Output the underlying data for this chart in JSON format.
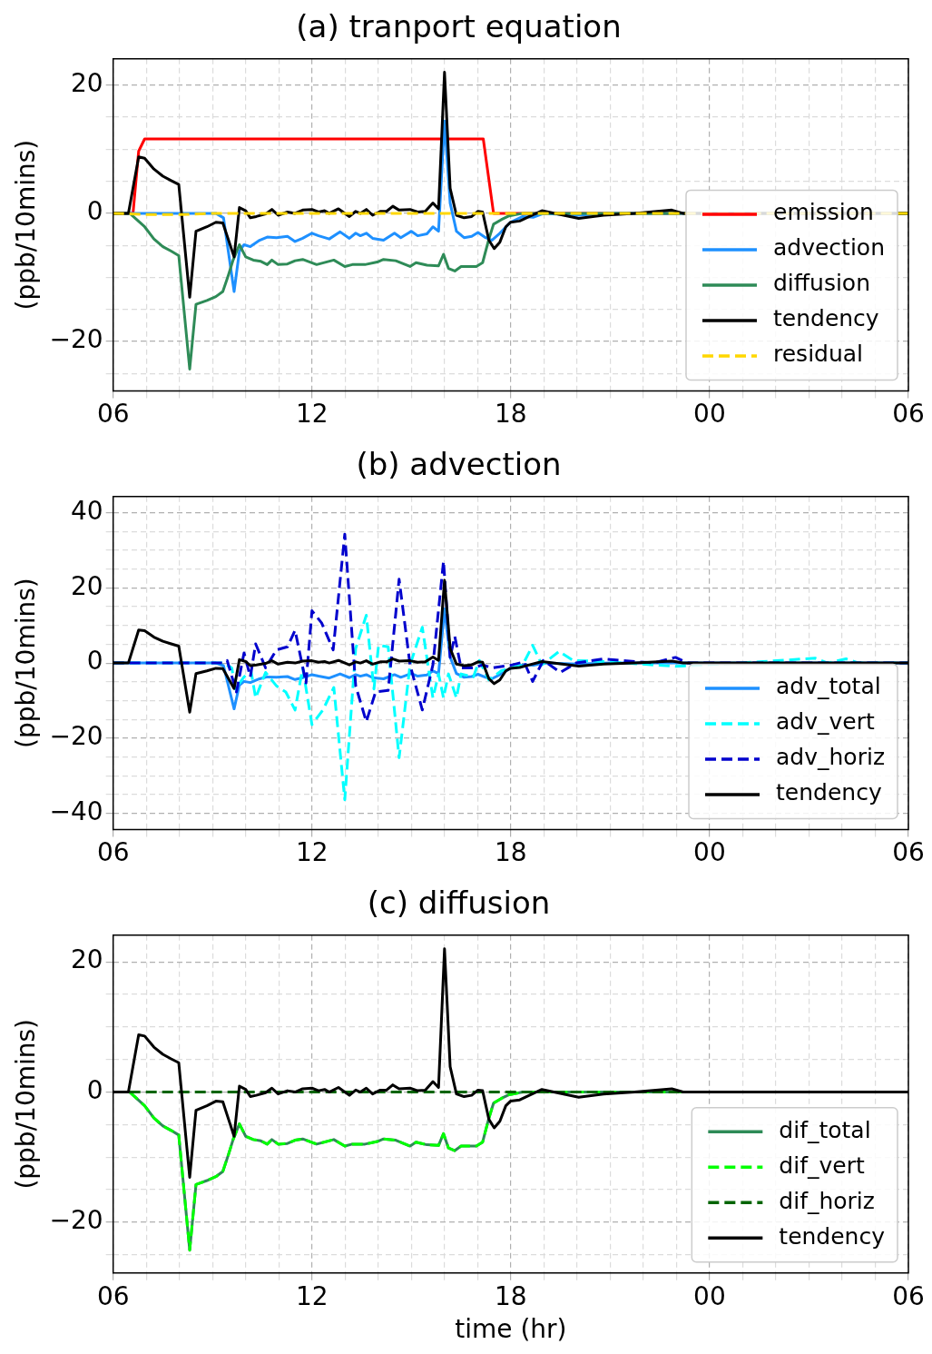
{
  "chart_data": [
    {
      "type": "line",
      "title": "(a) tranport equation",
      "ylabel": "(ppb/10mins)",
      "grid": true,
      "legend": "lower right",
      "xlim": [
        6,
        30
      ],
      "xticks": [
        {
          "value": 6,
          "label": "06"
        },
        {
          "value": 7,
          "label": null
        },
        {
          "value": 8,
          "label": null
        },
        {
          "value": 9,
          "label": null
        },
        {
          "value": 10,
          "label": null
        },
        {
          "value": 11,
          "label": null
        },
        {
          "value": 12,
          "label": "12"
        },
        {
          "value": 13,
          "label": null
        },
        {
          "value": 14,
          "label": null
        },
        {
          "value": 15,
          "label": null
        },
        {
          "value": 16,
          "label": null
        },
        {
          "value": 17,
          "label": null
        },
        {
          "value": 18,
          "label": "18"
        },
        {
          "value": 19,
          "label": null
        },
        {
          "value": 20,
          "label": null
        },
        {
          "value": 21,
          "label": null
        },
        {
          "value": 22,
          "label": null
        },
        {
          "value": 23,
          "label": null
        },
        {
          "value": 24,
          "label": "00"
        },
        {
          "value": 25,
          "label": null
        },
        {
          "value": 26,
          "label": null
        },
        {
          "value": 27,
          "label": null
        },
        {
          "value": 28,
          "label": null
        },
        {
          "value": 29,
          "label": null
        },
        {
          "value": 30,
          "label": "06"
        }
      ],
      "ylim": [
        -27.7,
        24.1
      ],
      "yticks": [
        {
          "value": -25,
          "label": null
        },
        {
          "value": -20,
          "label": "−20"
        },
        {
          "value": -15,
          "label": null
        },
        {
          "value": -10,
          "label": null
        },
        {
          "value": -5,
          "label": null
        },
        0,
        {
          "value": 5,
          "label": null
        },
        {
          "value": 10,
          "label": null
        },
        {
          "value": 15,
          "label": null
        },
        20
      ],
      "series": [
        {
          "name": "emission",
          "color": "#ff0000",
          "x": [
            6,
            6.6,
            6.77,
            6.95,
            17.17,
            17.48,
            30
          ],
          "values": [
            0,
            0,
            9.7,
            11.6,
            11.6,
            0,
            0
          ]
        },
        {
          "name": "advection",
          "color": "#1e90ff",
          "x": [
            6,
            9.1,
            9.33,
            9.65,
            9.81,
            9.95,
            10.14,
            10.42,
            10.65,
            10.93,
            11.26,
            11.49,
            11.72,
            12.0,
            12.2,
            12.52,
            12.85,
            13.13,
            13.32,
            13.46,
            13.64,
            13.83,
            14.16,
            14.49,
            14.68,
            15.0,
            15.19,
            15.47,
            15.65,
            15.82,
            16.0,
            16.17,
            16.36,
            16.59,
            16.82,
            17.01,
            17.24,
            17.43,
            17.67,
            17.99,
            18.36,
            18.69,
            19.0,
            20.0,
            21.0,
            30
          ],
          "values": [
            0,
            0,
            -0.7,
            -12.2,
            -5.9,
            -4.9,
            -5.2,
            -4.2,
            -3.7,
            -3.8,
            -3.6,
            -4.4,
            -3.9,
            -3.1,
            -3.5,
            -4.0,
            -2.9,
            -3.9,
            -3.1,
            -3.5,
            -3.1,
            -3.9,
            -4.2,
            -3.1,
            -3.8,
            -2.8,
            -3.5,
            -3.2,
            -2.1,
            -2.8,
            14.4,
            1.6,
            -2.8,
            -3.8,
            -3.6,
            -3.0,
            -3.8,
            -4.2,
            -3.1,
            -1.4,
            -0.5,
            -0.6,
            0,
            -0.3,
            0,
            0
          ]
        },
        {
          "name": "diffusion",
          "color": "#2e8b57",
          "x": [
            6,
            6.5,
            6.95,
            7.23,
            7.5,
            7.75,
            7.98,
            8.31,
            8.5,
            8.83,
            9.1,
            9.31,
            9.48,
            9.62,
            9.81,
            10.0,
            10.23,
            10.46,
            10.65,
            10.79,
            10.98,
            11.26,
            11.49,
            11.72,
            12.14,
            12.66,
            12.99,
            13.22,
            13.6,
            13.97,
            14.16,
            14.53,
            14.96,
            15.14,
            15.47,
            15.82,
            15.97,
            16.12,
            16.31,
            16.5,
            16.96,
            17.15,
            17.34,
            17.48,
            17.71,
            17.95,
            18.36,
            30
          ],
          "values": [
            0,
            0,
            -2.1,
            -4.0,
            -5.2,
            -5.9,
            -6.6,
            -24.3,
            -14.2,
            -13.6,
            -13.0,
            -12.2,
            -9.6,
            -7.3,
            -4.9,
            -6.8,
            -7.3,
            -7.5,
            -8.0,
            -7.3,
            -8.0,
            -7.9,
            -7.4,
            -7.2,
            -8.0,
            -7.3,
            -8.3,
            -8.0,
            -8.0,
            -7.6,
            -7.2,
            -7.4,
            -8.3,
            -7.7,
            -8.1,
            -8.2,
            -6.4,
            -8.6,
            -9.0,
            -8.3,
            -8.3,
            -7.7,
            -4.0,
            -1.7,
            -1.0,
            -0.4,
            0,
            0
          ]
        },
        {
          "name": "tendency",
          "color": "#000000",
          "x": [
            6,
            6.46,
            6.77,
            6.95,
            7.23,
            7.5,
            7.75,
            7.98,
            8.31,
            8.5,
            8.83,
            9.1,
            9.31,
            9.65,
            9.81,
            10.0,
            10.14,
            10.32,
            10.6,
            10.79,
            10.98,
            11.26,
            11.49,
            11.72,
            12.0,
            12.2,
            12.38,
            12.52,
            12.8,
            13.13,
            13.32,
            13.46,
            13.64,
            13.83,
            14.06,
            14.25,
            14.44,
            14.63,
            14.96,
            15.19,
            15.42,
            15.65,
            15.82,
            16.0,
            16.17,
            16.36,
            16.59,
            16.82,
            17.01,
            17.15,
            17.34,
            17.5,
            17.67,
            17.85,
            17.99,
            18.27,
            18.56,
            18.94,
            20.05,
            20.8,
            21.74,
            22.86,
            23.2,
            30
          ],
          "values": [
            0,
            0,
            8.8,
            8.6,
            6.9,
            5.8,
            5.1,
            4.5,
            -13.1,
            -2.8,
            -2.1,
            -1.4,
            -1.5,
            -6.8,
            0.9,
            0.4,
            -0.7,
            -0.5,
            -0.1,
            0.6,
            -0.3,
            0.2,
            0,
            0.5,
            0.6,
            0.2,
            0.4,
            0,
            0.7,
            -0.5,
            0.3,
            0,
            0.6,
            -0.3,
            0.3,
            0.3,
            1.1,
            0.5,
            0.6,
            0.2,
            0.3,
            1.6,
            0.7,
            22.0,
            3.9,
            -0.3,
            -0.7,
            -0.5,
            0.3,
            0.2,
            -4.2,
            -5.5,
            -4.5,
            -2.1,
            -1.4,
            -1.2,
            -0.5,
            0.4,
            -0.8,
            -0.3,
            0,
            0.5,
            0,
            0
          ]
        },
        {
          "name": "residual",
          "color": "#ffd700",
          "line_style": "dashed",
          "x": [
            6,
            7,
            8,
            9,
            30
          ],
          "values": [
            0,
            -0.2,
            -0.2,
            0,
            0
          ]
        }
      ]
    },
    {
      "type": "line",
      "title": "(b) advection",
      "ylabel": "(ppb/10mins)",
      "grid": true,
      "legend": "lower right",
      "xlim": [
        6,
        30
      ],
      "xticks": [
        {
          "value": 6,
          "label": "06"
        },
        {
          "value": 7,
          "label": null
        },
        {
          "value": 8,
          "label": null
        },
        {
          "value": 9,
          "label": null
        },
        {
          "value": 10,
          "label": null
        },
        {
          "value": 11,
          "label": null
        },
        {
          "value": 12,
          "label": "12"
        },
        {
          "value": 13,
          "label": null
        },
        {
          "value": 14,
          "label": null
        },
        {
          "value": 15,
          "label": null
        },
        {
          "value": 16,
          "label": null
        },
        {
          "value": 17,
          "label": null
        },
        {
          "value": 18,
          "label": "18"
        },
        {
          "value": 19,
          "label": null
        },
        {
          "value": 20,
          "label": null
        },
        {
          "value": 21,
          "label": null
        },
        {
          "value": 22,
          "label": null
        },
        {
          "value": 23,
          "label": null
        },
        {
          "value": 24,
          "label": "00"
        },
        {
          "value": 25,
          "label": null
        },
        {
          "value": 26,
          "label": null
        },
        {
          "value": 27,
          "label": null
        },
        {
          "value": 28,
          "label": null
        },
        {
          "value": 29,
          "label": null
        },
        {
          "value": 30,
          "label": "06"
        }
      ],
      "ylim": [
        -44.3,
        44.3
      ],
      "yticks": [
        {
          "value": -40,
          "label": "−40"
        },
        {
          "value": -35,
          "label": null
        },
        {
          "value": -30,
          "label": null
        },
        {
          "value": -25,
          "label": null
        },
        {
          "value": -20,
          "label": "−20"
        },
        {
          "value": -15,
          "label": null
        },
        {
          "value": -10,
          "label": null
        },
        {
          "value": -5,
          "label": null
        },
        0,
        {
          "value": 5,
          "label": null
        },
        {
          "value": 10,
          "label": null
        },
        {
          "value": 15,
          "label": null
        },
        20,
        {
          "value": 25,
          "label": null
        },
        {
          "value": 30,
          "label": null
        },
        {
          "value": 35,
          "label": null
        },
        40
      ],
      "series": [
        {
          "name": "adv_total",
          "color": "#1e90ff",
          "x": [
            6,
            9.1,
            9.33,
            9.65,
            9.81,
            9.95,
            10.14,
            10.42,
            10.65,
            10.93,
            11.26,
            11.49,
            11.72,
            12.0,
            12.2,
            12.52,
            12.85,
            13.13,
            13.32,
            13.46,
            13.64,
            13.83,
            14.16,
            14.49,
            14.68,
            15.0,
            15.19,
            15.47,
            15.65,
            15.82,
            16.0,
            16.17,
            16.36,
            16.59,
            16.82,
            17.01,
            17.24,
            17.43,
            17.67,
            17.99,
            18.36,
            18.69,
            19.0,
            20.0,
            21.0,
            30
          ],
          "values": [
            0,
            0,
            -0.7,
            -12.2,
            -5.9,
            -4.9,
            -5.2,
            -4.2,
            -3.7,
            -3.8,
            -3.6,
            -4.4,
            -3.9,
            -3.1,
            -3.5,
            -4.0,
            -2.9,
            -3.9,
            -3.1,
            -3.5,
            -3.1,
            -3.9,
            -4.2,
            -3.1,
            -3.8,
            -2.8,
            -3.5,
            -3.2,
            -2.1,
            -2.8,
            14.4,
            1.6,
            -2.8,
            -3.8,
            -3.6,
            -3.0,
            -3.8,
            -4.2,
            -3.1,
            -1.4,
            -0.5,
            -0.6,
            0,
            -0.3,
            0,
            0
          ]
        },
        {
          "name": "adv_vert",
          "color": "#00ffff",
          "line_style": "dashed",
          "x": [
            6,
            9.31,
            9.58,
            9.69,
            9.95,
            10.16,
            10.3,
            10.6,
            10.93,
            11.21,
            11.49,
            11.72,
            12.0,
            12.33,
            12.66,
            12.99,
            13.32,
            13.64,
            13.87,
            14.01,
            14.3,
            14.63,
            14.96,
            15.33,
            15.65,
            15.82,
            15.97,
            16.12,
            16.36,
            16.5,
            16.87,
            17.05,
            17.34,
            17.71,
            17.99,
            18.36,
            18.66,
            18.94,
            19.46,
            19.88,
            21.0,
            22.97,
            25.5,
            27.18,
            27.56,
            28.12,
            28.5,
            30
          ],
          "values": [
            0,
            0,
            -1.3,
            -6.9,
            -3.7,
            -2.1,
            -9.3,
            -2.5,
            -6.1,
            -7.7,
            -12.5,
            -1.3,
            -16.4,
            -12.5,
            -6.5,
            -36.4,
            3.9,
            12.7,
            -6.9,
            4.7,
            4.3,
            -25.2,
            -0.5,
            9.5,
            -9.3,
            -2.9,
            -9.3,
            -2.9,
            -9.3,
            -2.9,
            -3.7,
            0.7,
            -4.5,
            -2.1,
            -1.3,
            -0.5,
            4.7,
            -0.5,
            3.1,
            0.7,
            0.3,
            -0.9,
            0.3,
            1.3,
            0,
            1.1,
            0,
            0
          ]
        },
        {
          "name": "adv_horiz",
          "color": "#0000cd",
          "line_style": "dashed",
          "x": [
            6,
            9.31,
            9.44,
            9.72,
            9.95,
            10.14,
            10.3,
            10.6,
            10.93,
            11.26,
            11.49,
            11.82,
            12.0,
            12.29,
            12.64,
            12.99,
            13.32,
            13.64,
            13.92,
            14.3,
            14.63,
            14.96,
            15.33,
            15.65,
            15.97,
            16.17,
            16.31,
            16.5,
            16.87,
            17.15,
            17.43,
            17.99,
            18.4,
            18.66,
            18.98,
            19.5,
            19.97,
            20.81,
            22.31,
            22.97,
            23.35,
            30
          ],
          "values": [
            0,
            0,
            0.7,
            -7.7,
            2.7,
            -3.7,
            5.1,
            -1.3,
            3.5,
            4.3,
            8.7,
            -5.3,
            13.9,
            10.7,
            3.5,
            34.3,
            -6.1,
            -15.6,
            -7.7,
            -7.3,
            22.3,
            -0.5,
            -12.5,
            -0.5,
            27.1,
            1.5,
            7.1,
            -1.3,
            -1.3,
            -0.5,
            -1.3,
            -0.6,
            0.3,
            -4.9,
            0.7,
            -2.5,
            0,
            1.1,
            0,
            1.5,
            0,
            0
          ]
        },
        {
          "name": "tendency",
          "color": "#000000",
          "x": [
            6,
            6.46,
            6.77,
            6.95,
            7.23,
            7.5,
            7.75,
            7.98,
            8.31,
            8.5,
            8.83,
            9.1,
            9.31,
            9.65,
            9.81,
            10.0,
            10.14,
            10.32,
            10.6,
            10.79,
            10.98,
            11.26,
            11.49,
            11.72,
            12.0,
            12.2,
            12.38,
            12.52,
            12.8,
            13.13,
            13.32,
            13.46,
            13.64,
            13.83,
            14.06,
            14.25,
            14.44,
            14.63,
            14.96,
            15.19,
            15.42,
            15.65,
            15.82,
            16.0,
            16.17,
            16.36,
            16.59,
            16.82,
            17.01,
            17.15,
            17.34,
            17.5,
            17.67,
            17.85,
            17.99,
            18.27,
            18.56,
            18.94,
            20.05,
            20.8,
            21.74,
            22.86,
            23.2,
            30
          ],
          "values": [
            0,
            0,
            8.8,
            8.6,
            6.9,
            5.8,
            5.1,
            4.5,
            -13.1,
            -2.8,
            -2.1,
            -1.4,
            -1.5,
            -6.8,
            0.9,
            0.4,
            -0.7,
            -0.5,
            -0.1,
            0.6,
            -0.3,
            0.2,
            0,
            0.5,
            0.6,
            0.2,
            0.4,
            0,
            0.7,
            -0.5,
            0.3,
            0,
            0.6,
            -0.3,
            0.3,
            0.3,
            1.1,
            0.5,
            0.6,
            0.2,
            0.3,
            1.6,
            0.7,
            22.0,
            3.9,
            -0.3,
            -0.7,
            -0.5,
            0.3,
            0.2,
            -4.2,
            -5.5,
            -4.5,
            -2.1,
            -1.4,
            -1.2,
            -0.5,
            0.4,
            -0.8,
            -0.3,
            0,
            0.5,
            0,
            0
          ]
        }
      ]
    },
    {
      "type": "line",
      "title": "(c) diffusion",
      "ylabel": "(ppb/10mins)",
      "xlabel": "time (hr)",
      "grid": true,
      "legend": "lower right",
      "xlim": [
        6,
        30
      ],
      "xticks": [
        {
          "value": 6,
          "label": "06"
        },
        {
          "value": 7,
          "label": null
        },
        {
          "value": 8,
          "label": null
        },
        {
          "value": 9,
          "label": null
        },
        {
          "value": 10,
          "label": null
        },
        {
          "value": 11,
          "label": null
        },
        {
          "value": 12,
          "label": "12"
        },
        {
          "value": 13,
          "label": null
        },
        {
          "value": 14,
          "label": null
        },
        {
          "value": 15,
          "label": null
        },
        {
          "value": 16,
          "label": null
        },
        {
          "value": 17,
          "label": null
        },
        {
          "value": 18,
          "label": "18"
        },
        {
          "value": 19,
          "label": null
        },
        {
          "value": 20,
          "label": null
        },
        {
          "value": 21,
          "label": null
        },
        {
          "value": 22,
          "label": null
        },
        {
          "value": 23,
          "label": null
        },
        {
          "value": 24,
          "label": "00"
        },
        {
          "value": 25,
          "label": null
        },
        {
          "value": 26,
          "label": null
        },
        {
          "value": 27,
          "label": null
        },
        {
          "value": 28,
          "label": null
        },
        {
          "value": 29,
          "label": null
        },
        {
          "value": 30,
          "label": "06"
        }
      ],
      "ylim": [
        -27.8,
        24.1
      ],
      "yticks": [
        {
          "value": -25,
          "label": null
        },
        {
          "value": -20,
          "label": "−20"
        },
        {
          "value": -15,
          "label": null
        },
        {
          "value": -10,
          "label": null
        },
        {
          "value": -5,
          "label": null
        },
        0,
        {
          "value": 5,
          "label": null
        },
        {
          "value": 10,
          "label": null
        },
        {
          "value": 15,
          "label": null
        },
        20
      ],
      "series": [
        {
          "name": "dif_total",
          "color": "#2e8b57",
          "x": [
            6,
            6.5,
            6.95,
            7.23,
            7.5,
            7.75,
            7.98,
            8.31,
            8.5,
            8.83,
            9.1,
            9.31,
            9.48,
            9.62,
            9.81,
            10.0,
            10.23,
            10.46,
            10.65,
            10.79,
            10.98,
            11.26,
            11.49,
            11.72,
            12.14,
            12.66,
            12.99,
            13.22,
            13.6,
            13.97,
            14.16,
            14.53,
            14.96,
            15.14,
            15.47,
            15.82,
            15.97,
            16.12,
            16.31,
            16.5,
            16.96,
            17.15,
            17.34,
            17.48,
            17.71,
            17.95,
            18.36,
            30
          ],
          "values": [
            0,
            0,
            -2.1,
            -4.0,
            -5.2,
            -5.9,
            -6.6,
            -24.3,
            -14.2,
            -13.6,
            -13.0,
            -12.2,
            -9.6,
            -7.3,
            -4.9,
            -6.8,
            -7.3,
            -7.5,
            -8.0,
            -7.3,
            -8.0,
            -7.9,
            -7.4,
            -7.2,
            -8.0,
            -7.3,
            -8.3,
            -8.0,
            -8.0,
            -7.6,
            -7.2,
            -7.4,
            -8.3,
            -7.7,
            -8.1,
            -8.2,
            -6.4,
            -8.6,
            -9.0,
            -8.3,
            -8.3,
            -7.7,
            -4.0,
            -1.7,
            -1.0,
            -0.4,
            0,
            0
          ]
        },
        {
          "name": "dif_vert",
          "color": "#00ff00",
          "line_style": "dashed",
          "x": [
            6,
            6.5,
            6.95,
            7.23,
            7.5,
            7.75,
            7.98,
            8.31,
            8.5,
            8.83,
            9.1,
            9.31,
            9.48,
            9.62,
            9.81,
            10.0,
            10.23,
            10.46,
            10.65,
            10.79,
            10.98,
            11.26,
            11.49,
            11.72,
            12.14,
            12.66,
            12.99,
            13.22,
            13.6,
            13.97,
            14.16,
            14.53,
            14.96,
            15.14,
            15.47,
            15.82,
            15.97,
            16.12,
            16.31,
            16.5,
            16.96,
            17.15,
            17.34,
            17.48,
            17.71,
            17.95,
            18.36,
            30
          ],
          "values": [
            0,
            0,
            -2.1,
            -4.0,
            -5.2,
            -5.9,
            -6.6,
            -24.3,
            -14.2,
            -13.6,
            -13.0,
            -12.2,
            -9.6,
            -7.3,
            -4.9,
            -6.8,
            -7.3,
            -7.5,
            -8.0,
            -7.3,
            -8.0,
            -7.9,
            -7.4,
            -7.2,
            -8.0,
            -7.3,
            -8.3,
            -8.0,
            -8.0,
            -7.6,
            -7.2,
            -7.4,
            -8.3,
            -7.7,
            -8.1,
            -8.2,
            -6.4,
            -8.6,
            -9.0,
            -8.3,
            -8.3,
            -7.7,
            -4.0,
            -1.7,
            -1.0,
            -0.4,
            0,
            0
          ]
        },
        {
          "name": "dif_horiz",
          "color": "#006400",
          "line_style": "dashed",
          "x": [
            6,
            30
          ],
          "values": [
            0,
            0
          ]
        },
        {
          "name": "tendency",
          "color": "#000000",
          "x": [
            6,
            6.46,
            6.77,
            6.95,
            7.23,
            7.5,
            7.75,
            7.98,
            8.31,
            8.5,
            8.83,
            9.1,
            9.31,
            9.65,
            9.81,
            10.0,
            10.14,
            10.32,
            10.6,
            10.79,
            10.98,
            11.26,
            11.49,
            11.72,
            12.0,
            12.2,
            12.38,
            12.52,
            12.8,
            13.13,
            13.32,
            13.46,
            13.64,
            13.83,
            14.06,
            14.25,
            14.44,
            14.63,
            14.96,
            15.19,
            15.42,
            15.65,
            15.82,
            16.0,
            16.17,
            16.36,
            16.59,
            16.82,
            17.01,
            17.15,
            17.34,
            17.5,
            17.67,
            17.85,
            17.99,
            18.27,
            18.56,
            18.94,
            20.05,
            20.8,
            21.74,
            22.86,
            23.2,
            30
          ],
          "values": [
            0,
            0,
            8.8,
            8.6,
            6.9,
            5.8,
            5.1,
            4.5,
            -13.1,
            -2.8,
            -2.1,
            -1.4,
            -1.5,
            -6.8,
            0.9,
            0.4,
            -0.7,
            -0.5,
            -0.1,
            0.6,
            -0.3,
            0.2,
            0,
            0.5,
            0.6,
            0.2,
            0.4,
            0,
            0.7,
            -0.5,
            0.3,
            0,
            0.6,
            -0.3,
            0.3,
            0.3,
            1.1,
            0.5,
            0.6,
            0.2,
            0.3,
            1.6,
            0.7,
            22.0,
            3.9,
            -0.3,
            -0.7,
            -0.5,
            0.3,
            0.2,
            -4.2,
            -5.5,
            -4.5,
            -2.1,
            -1.4,
            -1.2,
            -0.5,
            0.4,
            -0.8,
            -0.3,
            0,
            0.5,
            0,
            0
          ]
        }
      ]
    }
  ]
}
